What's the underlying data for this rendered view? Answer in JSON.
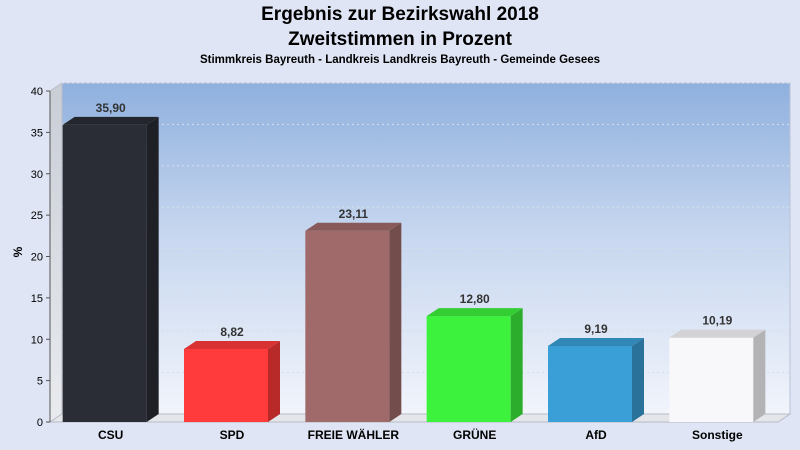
{
  "title": "Ergebnis zur Bezirkswahl 2018",
  "subtitle": "Zweitstimmen in Prozent",
  "caption": "Stimmkreis Bayreuth - Landkreis Landkreis Bayreuth - Gemeinde Gesees",
  "chart_data": {
    "type": "bar",
    "ylabel": "%",
    "ylim": [
      0,
      40
    ],
    "yticks": [
      0,
      5,
      10,
      15,
      20,
      25,
      30,
      35,
      40
    ],
    "grid": true,
    "categories": [
      "CSU",
      "SPD",
      "FREIE WÄHLER",
      "GRÜNE",
      "AfD",
      "Sonstige"
    ],
    "values": [
      35.9,
      8.82,
      23.11,
      12.8,
      9.19,
      10.19
    ],
    "value_labels": [
      "35,90",
      "8,82",
      "23,11",
      "12,80",
      "9,19",
      "10,19"
    ],
    "colors": [
      "#2a2d35",
      "#ff3b3b",
      "#a06a6a",
      "#3df23d",
      "#3a9fd6",
      "#f8f8fb"
    ]
  }
}
